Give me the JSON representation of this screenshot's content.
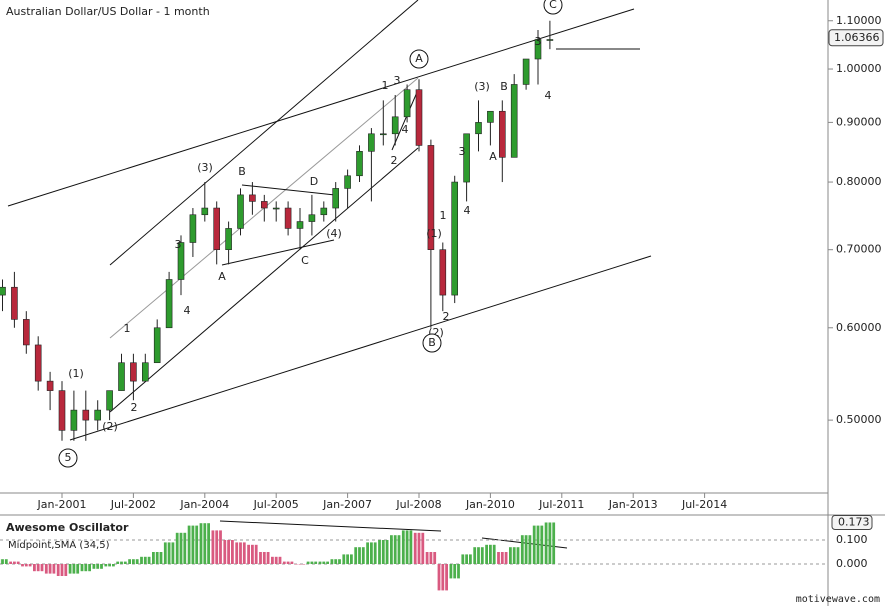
{
  "chart_data": [
    {
      "type": "candlestick",
      "title": "Australian Dollar/US Dollar - 1 month",
      "categories": [
        null,
        null,
        null,
        null,
        null,
        "Jan-2001",
        null,
        null,
        null,
        null,
        null,
        "Jul-2002",
        null,
        null,
        null,
        null,
        null,
        "Jan-2004",
        null,
        null,
        null,
        null,
        null,
        "Jul-2005",
        null,
        null,
        null,
        null,
        null,
        "Jan-2007",
        null,
        null,
        null,
        null,
        null,
        "Jul-2008",
        null,
        null,
        null,
        null,
        null,
        "Jan-2010",
        null,
        null,
        null,
        null,
        null,
        "Jul-2011",
        null,
        null,
        null,
        null,
        null,
        "Jan-2013",
        null,
        null,
        null,
        null,
        null,
        "Jul-2014",
        null,
        null,
        null,
        null,
        null,
        null,
        null,
        null,
        null
      ],
      "candles": [
        {
          "o": 0.64,
          "h": 0.66,
          "l": 0.62,
          "c": 0.65
        },
        {
          "o": 0.65,
          "h": 0.67,
          "l": 0.6,
          "c": 0.61
        },
        {
          "o": 0.61,
          "h": 0.62,
          "l": 0.57,
          "c": 0.58
        },
        {
          "o": 0.58,
          "h": 0.59,
          "l": 0.53,
          "c": 0.54
        },
        {
          "o": 0.54,
          "h": 0.55,
          "l": 0.51,
          "c": 0.53
        },
        {
          "o": 0.53,
          "h": 0.54,
          "l": 0.48,
          "c": 0.49
        },
        {
          "o": 0.49,
          "h": 0.53,
          "l": 0.48,
          "c": 0.51
        },
        {
          "o": 0.51,
          "h": 0.53,
          "l": 0.48,
          "c": 0.5
        },
        {
          "o": 0.5,
          "h": 0.52,
          "l": 0.49,
          "c": 0.51
        },
        {
          "o": 0.51,
          "h": 0.53,
          "l": 0.5,
          "c": 0.53
        },
        {
          "o": 0.53,
          "h": 0.57,
          "l": 0.53,
          "c": 0.56
        },
        {
          "o": 0.56,
          "h": 0.57,
          "l": 0.52,
          "c": 0.54
        },
        {
          "o": 0.54,
          "h": 0.57,
          "l": 0.54,
          "c": 0.56
        },
        {
          "o": 0.56,
          "h": 0.61,
          "l": 0.56,
          "c": 0.6
        },
        {
          "o": 0.6,
          "h": 0.67,
          "l": 0.6,
          "c": 0.66
        },
        {
          "o": 0.66,
          "h": 0.72,
          "l": 0.64,
          "c": 0.71
        },
        {
          "o": 0.71,
          "h": 0.76,
          "l": 0.69,
          "c": 0.75
        },
        {
          "o": 0.75,
          "h": 0.8,
          "l": 0.74,
          "c": 0.76
        },
        {
          "o": 0.76,
          "h": 0.77,
          "l": 0.68,
          "c": 0.7
        },
        {
          "o": 0.7,
          "h": 0.74,
          "l": 0.68,
          "c": 0.73
        },
        {
          "o": 0.73,
          "h": 0.79,
          "l": 0.72,
          "c": 0.78
        },
        {
          "o": 0.78,
          "h": 0.8,
          "l": 0.75,
          "c": 0.77
        },
        {
          "o": 0.77,
          "h": 0.78,
          "l": 0.74,
          "c": 0.76
        },
        {
          "o": 0.76,
          "h": 0.77,
          "l": 0.74,
          "c": 0.76
        },
        {
          "o": 0.76,
          "h": 0.77,
          "l": 0.72,
          "c": 0.73
        },
        {
          "o": 0.73,
          "h": 0.76,
          "l": 0.7,
          "c": 0.74
        },
        {
          "o": 0.74,
          "h": 0.78,
          "l": 0.72,
          "c": 0.75
        },
        {
          "o": 0.75,
          "h": 0.77,
          "l": 0.74,
          "c": 0.76
        },
        {
          "o": 0.76,
          "h": 0.8,
          "l": 0.74,
          "c": 0.79
        },
        {
          "o": 0.79,
          "h": 0.82,
          "l": 0.76,
          "c": 0.81
        },
        {
          "o": 0.81,
          "h": 0.86,
          "l": 0.8,
          "c": 0.85
        },
        {
          "o": 0.85,
          "h": 0.89,
          "l": 0.77,
          "c": 0.88
        },
        {
          "o": 0.88,
          "h": 0.94,
          "l": 0.86,
          "c": 0.88
        },
        {
          "o": 0.88,
          "h": 0.95,
          "l": 0.86,
          "c": 0.91
        },
        {
          "o": 0.91,
          "h": 0.97,
          "l": 0.9,
          "c": 0.96
        },
        {
          "o": 0.96,
          "h": 0.98,
          "l": 0.85,
          "c": 0.86
        },
        {
          "o": 0.86,
          "h": 0.87,
          "l": 0.6,
          "c": 0.7
        },
        {
          "o": 0.7,
          "h": 0.71,
          "l": 0.62,
          "c": 0.64
        },
        {
          "o": 0.64,
          "h": 0.81,
          "l": 0.63,
          "c": 0.8
        },
        {
          "o": 0.8,
          "h": 0.88,
          "l": 0.77,
          "c": 0.88
        },
        {
          "o": 0.88,
          "h": 0.94,
          "l": 0.85,
          "c": 0.9
        },
        {
          "o": 0.9,
          "h": 0.92,
          "l": 0.86,
          "c": 0.92
        },
        {
          "o": 0.92,
          "h": 0.94,
          "l": 0.8,
          "c": 0.84
        },
        {
          "o": 0.84,
          "h": 0.99,
          "l": 0.84,
          "c": 0.97
        },
        {
          "o": 0.97,
          "h": 1.02,
          "l": 0.96,
          "c": 1.02
        },
        {
          "o": 1.02,
          "h": 1.08,
          "l": 0.97,
          "c": 1.06
        },
        {
          "o": 1.06,
          "h": 1.1,
          "l": 1.04,
          "c": 1.06
        },
        null,
        null,
        null,
        null,
        null,
        null,
        null,
        null,
        null,
        null,
        null,
        null,
        null,
        null,
        null,
        null,
        null,
        null,
        null,
        null,
        null,
        null
      ],
      "up_color": "#2e9b2e",
      "down_color": "#b8283c",
      "log_scale": true,
      "ylim": [
        0.433,
        1.146
      ],
      "yticks": [
        {
          "value": 0.5,
          "label": "0.50000"
        },
        {
          "value": 0.6,
          "label": "0.60000"
        },
        {
          "value": 0.7,
          "label": "0.70000"
        },
        {
          "value": 0.8,
          "label": "0.80000"
        },
        {
          "value": 0.9,
          "label": "0.90000"
        },
        {
          "value": 1.0,
          "label": "1.00000"
        },
        {
          "value": 1.1,
          "label": "1.10000"
        }
      ],
      "last_value": 1.06366,
      "annotations": [
        "5",
        "(1)",
        "(2)",
        "1",
        "2",
        "3",
        "4",
        "(3)",
        "B",
        "A",
        "D",
        "C",
        "(4)",
        "1",
        "3",
        "4",
        "2",
        "A",
        "(1)",
        "1",
        "2",
        "(2)",
        "B",
        "3",
        "4",
        "(3)",
        "A",
        "B",
        "3",
        "4",
        "C"
      ]
    },
    {
      "type": "bar",
      "title": "Awesome Oscillator",
      "subtitle": "Midpoint,SMA (34,5)",
      "values": [
        0.02,
        0.01,
        -0.01,
        -0.03,
        -0.04,
        -0.05,
        -0.04,
        -0.03,
        -0.02,
        -0.01,
        0.01,
        0.02,
        0.03,
        0.05,
        0.09,
        0.13,
        0.16,
        0.17,
        0.14,
        0.1,
        0.09,
        0.08,
        0.05,
        0.03,
        0.01,
        0,
        0.01,
        0.01,
        0.02,
        0.04,
        0.07,
        0.09,
        0.1,
        0.12,
        0.14,
        0.13,
        0.05,
        -0.11,
        -0.06,
        0.04,
        0.07,
        0.08,
        0.05,
        0.07,
        0.12,
        0.16,
        0.173,
        null,
        null,
        null,
        null,
        null,
        null,
        null,
        null,
        null,
        null,
        null,
        null,
        null,
        null,
        null,
        null,
        null,
        null,
        null,
        null,
        null,
        null
      ],
      "up_color": "#4cb04c",
      "down_color": "#d95a80",
      "ylim": [
        -0.15,
        0.2
      ],
      "yticks": [
        {
          "value": 0.1,
          "label": "0.100"
        },
        {
          "value": 0,
          "label": "0.000"
        }
      ],
      "last_value": 0.173
    }
  ],
  "watermark": "motivewave.com"
}
